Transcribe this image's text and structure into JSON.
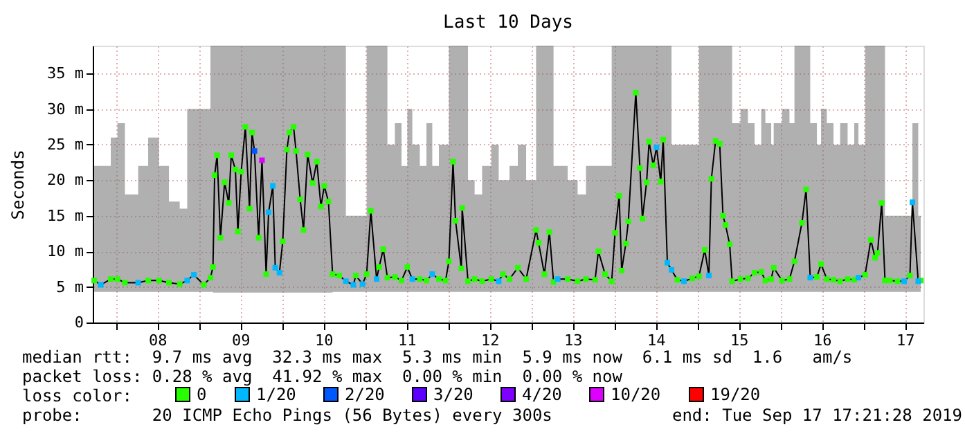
{
  "chart_data": {
    "type": "scatter",
    "title": "Last 10 Days",
    "ylabel": "Seconds",
    "legend_title": "loss color:",
    "xlim": [
      7.723,
      17.723
    ],
    "xticks": [
      {
        "value": 8,
        "label": null
      },
      {
        "value": 8.5,
        "label": "08"
      },
      {
        "value": 9,
        "label": null
      },
      {
        "value": 9.5,
        "label": "09"
      },
      {
        "value": 10,
        "label": null
      },
      {
        "value": 10.5,
        "label": "10"
      },
      {
        "value": 11,
        "label": null
      },
      {
        "value": 11.5,
        "label": "11"
      },
      {
        "value": 12,
        "label": null
      },
      {
        "value": 12.5,
        "label": "12"
      },
      {
        "value": 13,
        "label": null
      },
      {
        "value": 13.5,
        "label": "13"
      },
      {
        "value": 14,
        "label": null
      },
      {
        "value": 14.5,
        "label": "14"
      },
      {
        "value": 15,
        "label": null
      },
      {
        "value": 15.5,
        "label": "15"
      },
      {
        "value": 16,
        "label": null
      },
      {
        "value": 16.5,
        "label": "16"
      },
      {
        "value": 17,
        "label": null
      },
      {
        "value": 17.5,
        "label": "17"
      }
    ],
    "ylim": [
      0,
      38.9
    ],
    "yticks": [
      0,
      {
        "value": 5,
        "label": "5 m"
      },
      {
        "value": 10,
        "label": "10 m"
      },
      {
        "value": 15,
        "label": "15 m"
      },
      {
        "value": 20,
        "label": "20 m"
      },
      {
        "value": 25,
        "label": "25 m"
      },
      {
        "value": 30,
        "label": "30 m"
      },
      {
        "value": 35,
        "label": "35 m"
      }
    ],
    "grid": true,
    "legend": "bottom",
    "marker": "square",
    "series": [
      {
        "type": "line",
        "color": "#000000",
        "line_style": "solid",
        "marker": "none",
        "x": [
          7.74,
          7.82,
          7.94,
          8.02,
          8.11,
          8.27,
          8.39,
          8.52,
          8.64,
          8.77,
          8.86,
          8.94,
          9.06,
          9.14,
          9.17,
          9.19,
          9.22,
          9.26,
          9.31,
          9.36,
          9.39,
          9.44,
          9.47,
          9.51,
          9.56,
          9.61,
          9.64,
          9.67,
          9.72,
          9.76,
          9.81,
          9.84,
          9.89,
          9.92,
          9.97,
          10.01,
          10.06,
          10.09,
          10.14,
          10.17,
          10.22,
          10.26,
          10.31,
          10.37,
          10.42,
          10.47,
          10.51,
          10.56,
          10.61,
          10.69,
          10.77,
          10.86,
          10.89,
          10.97,
          11.02,
          11.07,
          11.14,
          11.17,
          11.22,
          11.27,
          11.36,
          11.44,
          11.51,
          11.57,
          11.66,
          11.74,
          11.81,
          11.89,
          11.97,
          12.01,
          12.06,
          12.09,
          12.16,
          12.17,
          12.24,
          12.32,
          12.41,
          12.52,
          12.61,
          12.66,
          12.74,
          12.84,
          12.94,
          13.06,
          13.09,
          13.16,
          13.22,
          13.27,
          13.32,
          13.44,
          13.56,
          13.66,
          13.77,
          13.81,
          13.89,
          13.97,
          14.01,
          14.06,
          14.09,
          14.14,
          14.17,
          14.26,
          14.31,
          14.34,
          14.39,
          14.42,
          14.47,
          14.51,
          14.56,
          14.59,
          14.64,
          14.69,
          14.76,
          14.84,
          14.94,
          15.02,
          15.09,
          15.14,
          15.17,
          15.22,
          15.27,
          15.31,
          15.34,
          15.39,
          15.42,
          15.52,
          15.61,
          15.69,
          15.77,
          15.82,
          15.89,
          15.92,
          16.02,
          16.11,
          16.17,
          16.26,
          16.31,
          16.36,
          16.44,
          16.49,
          16.56,
          16.64,
          16.72,
          16.81,
          16.89,
          16.94,
          17.02,
          17.09,
          17.14,
          17.17,
          17.22,
          17.26,
          17.32,
          17.41,
          17.49,
          17.56,
          17.59,
          17.66,
          17.69
        ],
        "values": [
          5.9,
          5.3,
          6.1,
          6.1,
          5.6,
          5.6,
          5.9,
          5.9,
          5.6,
          5.4,
          5.9,
          6.7,
          5.3,
          6.3,
          7.8,
          20.7,
          23.5,
          11.9,
          19.7,
          16.8,
          23.5,
          21.5,
          12.8,
          21.2,
          27.5,
          16,
          26.7,
          24.1,
          11.9,
          22.8,
          6.8,
          15.5,
          19.2,
          7.7,
          7.0,
          11.4,
          24.3,
          26.7,
          27.5,
          24.1,
          17.3,
          13,
          23.6,
          19.6,
          22.6,
          16.3,
          19.2,
          17,
          6.8,
          6.6,
          5.8,
          5.3,
          6.6,
          5.4,
          6.8,
          15.7,
          6.1,
          7.8,
          10.3,
          6.3,
          6.4,
          5.9,
          7.8,
          6.1,
          6.1,
          5.9,
          6.8,
          6.1,
          5.9,
          8.6,
          22.6,
          14.3,
          7.6,
          16.1,
          5.8,
          6.1,
          5.8,
          6.1,
          5.8,
          6.8,
          6.1,
          7.7,
          6.1,
          13,
          11.2,
          6.8,
          12.7,
          5.7,
          6.1,
          6.1,
          5.8,
          6.1,
          6,
          10,
          6.8,
          5.8,
          12.6,
          17.8,
          7.3,
          11.1,
          14.2,
          32.3,
          21.7,
          14.6,
          19.7,
          25.4,
          22.1,
          24.6,
          19.8,
          25.7,
          8.4,
          7.4,
          6,
          5.8,
          6.2,
          6.5,
          10.2,
          6.6,
          20.2,
          25.5,
          25.1,
          15,
          13.7,
          11,
          5.8,
          6.1,
          6.2,
          7,
          7.1,
          5.9,
          6.1,
          7.7,
          5.9,
          6.1,
          8.6,
          14,
          18.7,
          6.3,
          6.4,
          8.2,
          6.1,
          6,
          5.8,
          6.1,
          6,
          6.3,
          6.7,
          11.6,
          9.1,
          9.8,
          16.8,
          5.9,
          5.9,
          5.8,
          5.8,
          6.6,
          16.9,
          5.8,
          5.9
        ],
        "lower": [
          4.3,
          4.3,
          4.3,
          4.3,
          4.3,
          4.3,
          4.3,
          4.3,
          4.3,
          4.3,
          4.3,
          4.3,
          4.3,
          4.3,
          4.2,
          4.2,
          4.2,
          4.2,
          4.2,
          4.2,
          4.2,
          4.2,
          4.2,
          4.2,
          4.2,
          4.2,
          4.2,
          4.2,
          4.2,
          4.2,
          4.2,
          4.2,
          4.2,
          4.2,
          4.2,
          4.2,
          4.2,
          4.2,
          4.2,
          4.2,
          4.2,
          4.2,
          4.2,
          4.2,
          4.2,
          4.2,
          4.2,
          4.2,
          4.3,
          4.3,
          4.3,
          4.3,
          4.3,
          4.3,
          4.3,
          4.3,
          4.3,
          4.3,
          4.3,
          4.3,
          4.3,
          4.3,
          4.3,
          4.3,
          4.3,
          4.3,
          4.3,
          4.3,
          4.3,
          4.3,
          4.3,
          4.3,
          4.3,
          4.3,
          4.3,
          4.3,
          4.3,
          4.3,
          4.3,
          4.3,
          4.3,
          4.3,
          4.3,
          4.3,
          4.3,
          4.3,
          4.3,
          4.3,
          4.3,
          4.3,
          4.3,
          4.3,
          4.3,
          4.3,
          4.3,
          4.3,
          4.3,
          4.3,
          4.3,
          4.3,
          4.3,
          4.3,
          4.3,
          4.3,
          4.3,
          4.3,
          4.3,
          4.3,
          4.3,
          4.3,
          4.3,
          4.3,
          4.3,
          4.3,
          4.3,
          4.3,
          4.3,
          4.3,
          4.3,
          4.3,
          4.3,
          4.3,
          4.3,
          4.3,
          4.3,
          4.3,
          4.3,
          4.3,
          4.3,
          4.3,
          4.3,
          4.3,
          4.3,
          4.3,
          4.3,
          4.3,
          4.3,
          4.3,
          4.3,
          4.3,
          4.3,
          4.3,
          4.3,
          4.3,
          4.3,
          4.3,
          4.3,
          4.3,
          4.3,
          4.3,
          4.3,
          4.3,
          4.3,
          4.3,
          4.3,
          4.3,
          4.3,
          4.3,
          4.3
        ],
        "upper": [
          22,
          22,
          26,
          28,
          18,
          22,
          26,
          22,
          17,
          16,
          30,
          30,
          30,
          38.9,
          38.9,
          38.9,
          38.9,
          38.9,
          38.9,
          38.9,
          38.9,
          38.9,
          38.9,
          38.9,
          38.9,
          38.9,
          38.9,
          38.9,
          38.9,
          38.9,
          38.9,
          38.9,
          38.9,
          38.9,
          38.9,
          38.9,
          38.9,
          38.9,
          38.9,
          38.9,
          38.9,
          38.9,
          38.9,
          38.9,
          38.9,
          38.9,
          38.9,
          38.9,
          38.9,
          38.9,
          15,
          15,
          15,
          15,
          38.9,
          38.9,
          38.9,
          38.9,
          38.9,
          25,
          28,
          22,
          30,
          25,
          22,
          28,
          22,
          25,
          25,
          38.9,
          38.9,
          38.9,
          38.9,
          38.9,
          20,
          18,
          22,
          25,
          20,
          20,
          22,
          25,
          20,
          38.9,
          38.9,
          38.9,
          38.9,
          22,
          22,
          20,
          18,
          22,
          22,
          22,
          22,
          38.9,
          38.9,
          38.9,
          38.9,
          38.9,
          38.9,
          38.9,
          38.9,
          38.9,
          38.9,
          38.9,
          38.9,
          38.9,
          38.9,
          38.9,
          38.9,
          25,
          25,
          25,
          25,
          38.9,
          38.9,
          38.9,
          38.9,
          38.9,
          38.9,
          38.9,
          38.9,
          38.9,
          28,
          30,
          28,
          25,
          30,
          28,
          25,
          28,
          30,
          28,
          38.9,
          38.9,
          38.9,
          28,
          25,
          30,
          28,
          25,
          28,
          25,
          28,
          25,
          38.9,
          38.9,
          38.9,
          38.9,
          38.9,
          15,
          15,
          15,
          15,
          15,
          28,
          15,
          15
        ]
      },
      {
        "name": "0",
        "color": "#26ff00",
        "x": [
          7.74,
          7.94,
          8.02,
          8.11,
          8.39,
          8.52,
          8.64,
          8.77,
          9.06,
          9.14,
          9.17,
          9.19,
          9.22,
          9.26,
          9.31,
          9.36,
          9.39,
          9.44,
          9.47,
          9.51,
          9.56,
          9.61,
          9.64,
          9.72,
          9.81,
          10.01,
          10.06,
          10.09,
          10.14,
          10.17,
          10.22,
          10.26,
          10.31,
          10.37,
          10.42,
          10.47,
          10.51,
          10.56,
          10.61,
          10.69,
          10.89,
          11.02,
          11.07,
          11.17,
          11.22,
          11.27,
          11.36,
          11.44,
          11.51,
          11.66,
          11.74,
          11.89,
          11.97,
          12.01,
          12.06,
          12.09,
          12.16,
          12.17,
          12.24,
          12.32,
          12.41,
          12.52,
          12.66,
          12.74,
          12.84,
          12.94,
          13.06,
          13.09,
          13.16,
          13.22,
          13.27,
          13.44,
          13.56,
          13.66,
          13.77,
          13.81,
          13.89,
          13.97,
          14.01,
          14.06,
          14.09,
          14.14,
          14.17,
          14.26,
          14.31,
          14.34,
          14.39,
          14.42,
          14.47,
          14.56,
          14.59,
          14.76,
          14.94,
          15.02,
          15.09,
          15.17,
          15.22,
          15.27,
          15.31,
          15.34,
          15.39,
          15.42,
          15.52,
          15.61,
          15.69,
          15.77,
          15.82,
          15.89,
          15.92,
          16.02,
          16.11,
          16.17,
          16.26,
          16.31,
          16.44,
          16.49,
          16.56,
          16.64,
          16.72,
          16.81,
          16.89,
          17.02,
          17.09,
          17.14,
          17.17,
          17.22,
          17.26,
          17.32,
          17.41,
          17.56,
          17.69
        ],
        "values": [
          5.9,
          6.1,
          6.1,
          5.6,
          5.9,
          5.9,
          5.6,
          5.4,
          5.3,
          6.3,
          7.8,
          20.7,
          23.5,
          11.9,
          19.7,
          16.8,
          23.5,
          21.5,
          12.8,
          21.2,
          27.5,
          16,
          26.7,
          11.9,
          6.8,
          11.4,
          24.3,
          26.7,
          27.5,
          24.1,
          17.3,
          13,
          23.6,
          19.6,
          22.6,
          16.3,
          19.2,
          17,
          6.8,
          6.6,
          6.6,
          6.8,
          15.7,
          7.8,
          10.3,
          6.3,
          6.4,
          5.9,
          7.8,
          6.1,
          5.9,
          6.1,
          5.9,
          8.6,
          22.6,
          14.3,
          7.6,
          16.1,
          5.8,
          6.1,
          5.8,
          6.1,
          6.8,
          6.1,
          7.7,
          6.1,
          13,
          11.2,
          6.8,
          12.7,
          5.7,
          6.1,
          5.8,
          6.1,
          6,
          10,
          6.8,
          5.8,
          12.6,
          17.8,
          7.3,
          11.1,
          14.2,
          32.3,
          21.7,
          14.6,
          19.7,
          25.4,
          22.1,
          19.8,
          25.7,
          6,
          6.2,
          6.5,
          10.2,
          20.2,
          25.5,
          25.1,
          15,
          13.7,
          11,
          5.8,
          6.1,
          6.2,
          7,
          7.1,
          5.9,
          6.1,
          7.7,
          5.9,
          6.1,
          8.6,
          14,
          18.7,
          6.4,
          8.2,
          6.1,
          6,
          5.8,
          6.1,
          6,
          6.7,
          11.6,
          9.1,
          9.8,
          16.8,
          5.9,
          5.9,
          5.8,
          6.6,
          5.9
        ]
      },
      {
        "name": "1/20",
        "color": "#00b8ff",
        "x": [
          7.82,
          8.27,
          8.86,
          8.94,
          9.84,
          9.89,
          9.92,
          9.97,
          10.77,
          10.86,
          10.97,
          11.14,
          11.57,
          11.81,
          12.61,
          13.32,
          14.51,
          14.64,
          14.69,
          14.84,
          15.14,
          16.36,
          16.94,
          17.49,
          17.59,
          17.66
        ],
        "values": [
          5.3,
          5.6,
          5.9,
          6.7,
          15.5,
          19.2,
          7.7,
          7,
          5.8,
          5.3,
          5.4,
          6.1,
          6.1,
          6.8,
          5.8,
          6.1,
          24.6,
          8.4,
          7.4,
          5.8,
          6.6,
          6.3,
          6.3,
          5.8,
          16.9,
          5.8
        ]
      },
      {
        "name": "2/20",
        "color": "#0059ff",
        "x": [
          9.67
        ],
        "values": [
          24.1
        ]
      },
      {
        "name": "3/20",
        "color": "#5e00ff"
      },
      {
        "name": "4/20",
        "color": "#7e00ff"
      },
      {
        "name": "10/20",
        "color": "#dd00ff",
        "x": [
          9.76
        ],
        "values": [
          22.8
        ]
      },
      {
        "name": "19/20",
        "color": "#ff0000"
      }
    ],
    "annotations": [
      "median rtt:  9.7 ms avg  32.3 ms max  5.3 ms min  5.9 ms now  6.1 ms sd  1.6   am/s",
      "packet loss: 0.28 % avg  41.92 % max  0.00 % min  0.00 % now",
      "probe:       20 ICMP Echo Pings (56 Bytes) every 300s",
      "end: Tue Sep 17 17:21:28 2019"
    ]
  }
}
